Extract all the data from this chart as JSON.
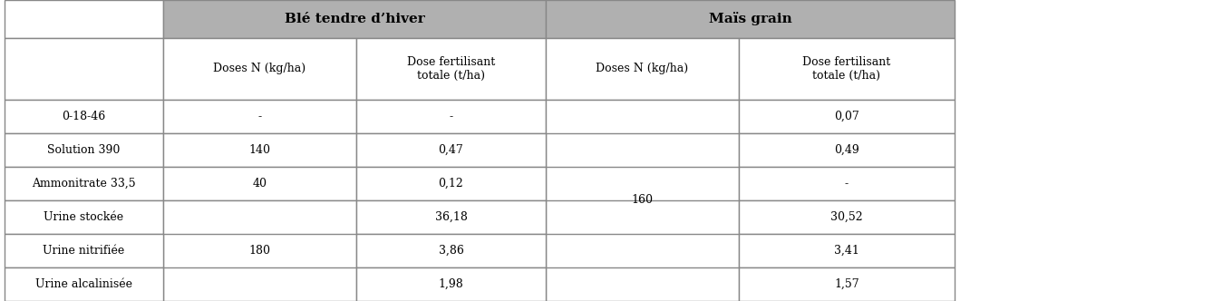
{
  "header_bg": "#b0b0b0",
  "white": "#ffffff",
  "border_color": "#888888",
  "col_header1": "Blé tendre d’hiver",
  "col_header2": "Maïs grain",
  "sub_headers": [
    "Doses N (kg/ha)",
    "Dose fertilisant\ntotale (t/ha)",
    "Doses N (kg/ha)",
    "Dose fertilisant\ntotale (t/ha)"
  ],
  "row_labels": [
    "0-18-46",
    "Solution 390",
    "Ammonitrate 33,5",
    "Urine stockée",
    "Urine nitrifiée",
    "Urine alcalinisée"
  ],
  "col_ble_doses_n": [
    "-",
    "140",
    "40",
    "",
    "180",
    ""
  ],
  "col_ble_dose_fert": [
    "-",
    "0,47",
    "0,12",
    "36,18",
    "3,86",
    "1,98"
  ],
  "col_mais_doses_n": [
    "",
    "",
    "160",
    "",
    "",
    ""
  ],
  "col_mais_dose_fert": [
    "0,07",
    "0,49",
    "-",
    "30,52",
    "3,41",
    "1,57"
  ],
  "figsize": [
    13.59,
    3.32
  ],
  "dpi": 100
}
